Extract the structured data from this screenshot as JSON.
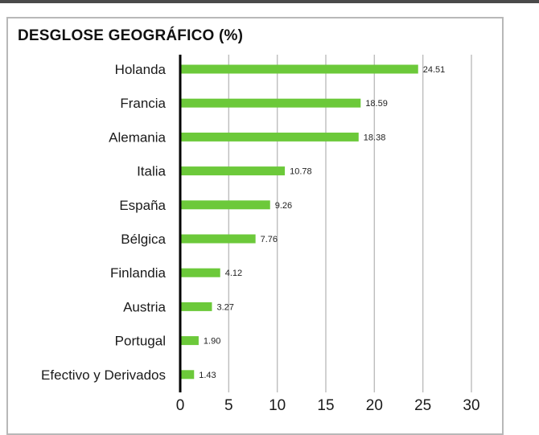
{
  "chart_data": {
    "type": "bar",
    "orientation": "horizontal",
    "title": "DESGLOSE GEOGRÁFICO (%)",
    "xlabel": "",
    "ylabel": "",
    "categories": [
      "Holanda",
      "Francia",
      "Alemania",
      "Italia",
      "España",
      "Bélgica",
      "Finlandia",
      "Austria",
      "Portugal",
      "Efectivo y Derivados"
    ],
    "values": [
      24.51,
      18.59,
      18.38,
      10.78,
      9.26,
      7.76,
      4.12,
      3.27,
      1.9,
      1.43
    ],
    "value_labels": [
      "24.51",
      "18.59",
      "18.38",
      "10.78",
      "9.26",
      "7.76",
      "4.12",
      "3.27",
      "1.90",
      "1.43"
    ],
    "xlim": [
      0,
      30
    ],
    "xticks": [
      0,
      5,
      10,
      15,
      20,
      25,
      30
    ],
    "grid": "vertical",
    "legend": "none",
    "bar_color": "#6cc93a",
    "grid_color": "#bdbdbd",
    "axis_color": "#000000"
  }
}
